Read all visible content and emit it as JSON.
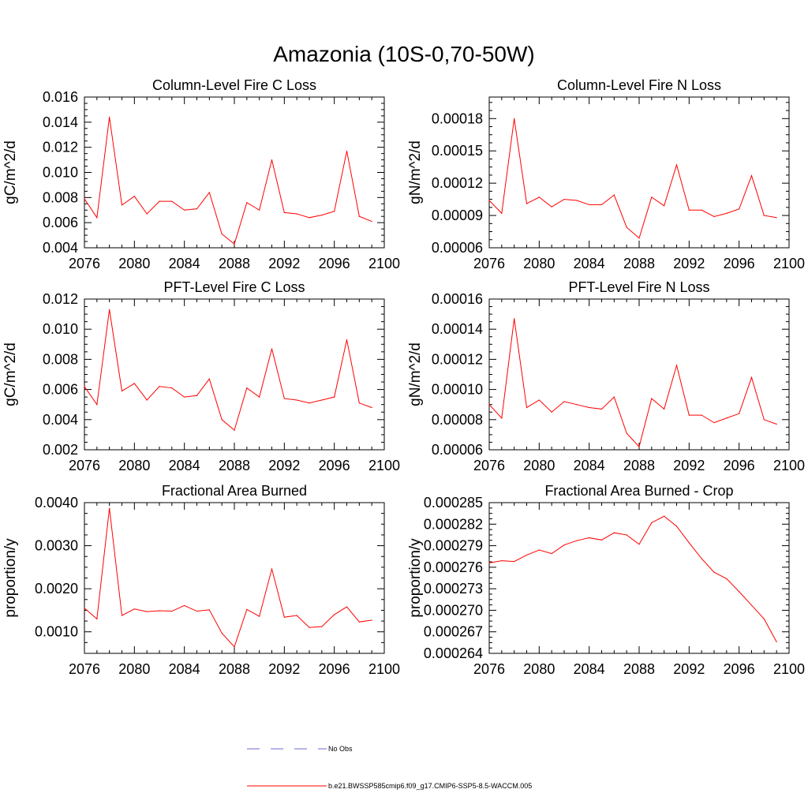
{
  "figure": {
    "title": "Amazonia (10S-0,70-50W)"
  },
  "legend": {
    "items": [
      {
        "label": "No Obs",
        "style": "dashed",
        "color": "#6a6acd"
      },
      {
        "label": "b.e21.BWSSP585cmip6.f09_g17.CMIP6-SSP5-8.5-WACCM.005",
        "style": "solid",
        "color": "#ff0000"
      }
    ]
  },
  "colors": {
    "series": "#ff0000",
    "axis": "#000000",
    "background": "#ffffff"
  },
  "chart_data": [
    {
      "type": "line",
      "title": "Column-Level Fire C Loss",
      "ylabel": "gC/m^2/d",
      "xlim": [
        2076,
        2100
      ],
      "ylim": [
        0.004,
        0.016
      ],
      "xticks": [
        "2076",
        "2080",
        "2084",
        "2088",
        "2092",
        "2096",
        "2100"
      ],
      "yticks": [
        "0.004",
        "0.006",
        "0.008",
        "0.010",
        "0.012",
        "0.014",
        "0.016"
      ],
      "x": [
        2076,
        2077,
        2078,
        2079,
        2080,
        2081,
        2082,
        2083,
        2084,
        2085,
        2086,
        2087,
        2088,
        2089,
        2090,
        2091,
        2092,
        2093,
        2094,
        2095,
        2096,
        2097,
        2098,
        2099
      ],
      "series": [
        {
          "values": [
            0.0079,
            0.0064,
            0.0144,
            0.0074,
            0.0081,
            0.0067,
            0.0077,
            0.0077,
            0.007,
            0.0071,
            0.0084,
            0.0051,
            0.0043,
            0.0076,
            0.007,
            0.011,
            0.0068,
            0.0067,
            0.0064,
            0.0066,
            0.0069,
            0.0117,
            0.0065,
            0.0061
          ]
        }
      ]
    },
    {
      "type": "line",
      "title": "Column-Level Fire N Loss",
      "ylabel": "gN/m^2/d",
      "xlim": [
        2076,
        2100
      ],
      "ylim": [
        6e-05,
        0.0002
      ],
      "xticks": [
        "2076",
        "2080",
        "2084",
        "2088",
        "2092",
        "2096",
        "2100"
      ],
      "yticks": [
        "0.00006",
        "0.00009",
        "0.00012",
        "0.00015",
        "0.00018"
      ],
      "x": [
        2076,
        2077,
        2078,
        2079,
        2080,
        2081,
        2082,
        2083,
        2084,
        2085,
        2086,
        2087,
        2088,
        2089,
        2090,
        2091,
        2092,
        2093,
        2094,
        2095,
        2096,
        2097,
        2098,
        2099
      ],
      "series": [
        {
          "values": [
            0.000104,
            9.2e-05,
            0.00018,
            0.000101,
            0.000107,
            9.8e-05,
            0.000105,
            0.000104,
            0.0001,
            0.0001,
            0.000109,
            7.9e-05,
            6.9e-05,
            0.000107,
            9.9e-05,
            0.000137,
            9.5e-05,
            9.5e-05,
            8.9e-05,
            9.2e-05,
            9.6e-05,
            0.000127,
            9e-05,
            8.8e-05
          ]
        }
      ]
    },
    {
      "type": "line",
      "title": "PFT-Level Fire C Loss",
      "ylabel": "gC/m^2/d",
      "xlim": [
        2076,
        2100
      ],
      "ylim": [
        0.002,
        0.012
      ],
      "xticks": [
        "2076",
        "2080",
        "2084",
        "2088",
        "2092",
        "2096",
        "2100"
      ],
      "yticks": [
        "0.002",
        "0.004",
        "0.006",
        "0.008",
        "0.010",
        "0.012"
      ],
      "x": [
        2076,
        2077,
        2078,
        2079,
        2080,
        2081,
        2082,
        2083,
        2084,
        2085,
        2086,
        2087,
        2088,
        2089,
        2090,
        2091,
        2092,
        2093,
        2094,
        2095,
        2096,
        2097,
        2098,
        2099
      ],
      "series": [
        {
          "values": [
            0.0062,
            0.005,
            0.0113,
            0.0059,
            0.0064,
            0.0053,
            0.0062,
            0.0061,
            0.0055,
            0.0056,
            0.0067,
            0.004,
            0.0033,
            0.0061,
            0.0055,
            0.0087,
            0.0054,
            0.0053,
            0.0051,
            0.0053,
            0.0055,
            0.0093,
            0.0051,
            0.0048
          ]
        }
      ]
    },
    {
      "type": "line",
      "title": "PFT-Level Fire N Loss",
      "ylabel": "gN/m^2/d",
      "xlim": [
        2076,
        2100
      ],
      "ylim": [
        6e-05,
        0.00016
      ],
      "xticks": [
        "2076",
        "2080",
        "2084",
        "2088",
        "2092",
        "2096",
        "2100"
      ],
      "yticks": [
        "0.00006",
        "0.00008",
        "0.00010",
        "0.00012",
        "0.00014",
        "0.00016"
      ],
      "x": [
        2076,
        2077,
        2078,
        2079,
        2080,
        2081,
        2082,
        2083,
        2084,
        2085,
        2086,
        2087,
        2088,
        2089,
        2090,
        2091,
        2092,
        2093,
        2094,
        2095,
        2096,
        2097,
        2098,
        2099
      ],
      "series": [
        {
          "values": [
            9e-05,
            8.1e-05,
            0.000147,
            8.8e-05,
            9.3e-05,
            8.5e-05,
            9.2e-05,
            9e-05,
            8.8e-05,
            8.7e-05,
            9.5e-05,
            7.1e-05,
            6.2e-05,
            9.4e-05,
            8.7e-05,
            0.000116,
            8.3e-05,
            8.3e-05,
            7.8e-05,
            8.1e-05,
            8.4e-05,
            0.000108,
            8e-05,
            7.7e-05
          ]
        }
      ]
    },
    {
      "type": "line",
      "title": "Fractional Area Burned",
      "ylabel": "proportion/y",
      "xlim": [
        2076,
        2100
      ],
      "ylim": [
        0.0005,
        0.004
      ],
      "xticks": [
        "2076",
        "2080",
        "2084",
        "2088",
        "2092",
        "2096",
        "2100"
      ],
      "yticks": [
        "0.0010",
        "0.0020",
        "0.0030",
        "0.0040"
      ],
      "x": [
        2076,
        2077,
        2078,
        2079,
        2080,
        2081,
        2082,
        2083,
        2084,
        2085,
        2086,
        2087,
        2088,
        2089,
        2090,
        2091,
        2092,
        2093,
        2094,
        2095,
        2096,
        2097,
        2098,
        2099
      ],
      "series": [
        {
          "values": [
            0.00155,
            0.0013,
            0.00387,
            0.00138,
            0.00153,
            0.00147,
            0.00149,
            0.00148,
            0.00161,
            0.00148,
            0.00151,
            0.00097,
            0.00065,
            0.00152,
            0.00136,
            0.00246,
            0.00134,
            0.00138,
            0.0011,
            0.00112,
            0.0014,
            0.00158,
            0.00123,
            0.00127
          ]
        }
      ]
    },
    {
      "type": "line",
      "title": "Fractional Area Burned - Crop",
      "ylabel": "proportion/y",
      "xlim": [
        2076,
        2100
      ],
      "ylim": [
        0.000264,
        0.000285
      ],
      "xticks": [
        "2076",
        "2080",
        "2084",
        "2088",
        "2092",
        "2096",
        "2100"
      ],
      "yticks": [
        "0.000264",
        "0.000267",
        "0.000270",
        "0.000273",
        "0.000276",
        "0.000279",
        "0.000282",
        "0.000285"
      ],
      "x": [
        2076,
        2077,
        2078,
        2079,
        2080,
        2081,
        2082,
        2083,
        2084,
        2085,
        2086,
        2087,
        2088,
        2089,
        2090,
        2091,
        2092,
        2093,
        2094,
        2095,
        2096,
        2097,
        2098,
        2099
      ],
      "series": [
        {
          "values": [
            0.0002766,
            0.0002769,
            0.0002768,
            0.0002777,
            0.0002784,
            0.0002779,
            0.0002791,
            0.0002797,
            0.0002801,
            0.0002798,
            0.0002808,
            0.0002805,
            0.0002792,
            0.0002822,
            0.0002831,
            0.0002817,
            0.0002794,
            0.0002772,
            0.0002753,
            0.0002744,
            0.0002726,
            0.0002707,
            0.0002688,
            0.0002656
          ]
        }
      ]
    }
  ]
}
